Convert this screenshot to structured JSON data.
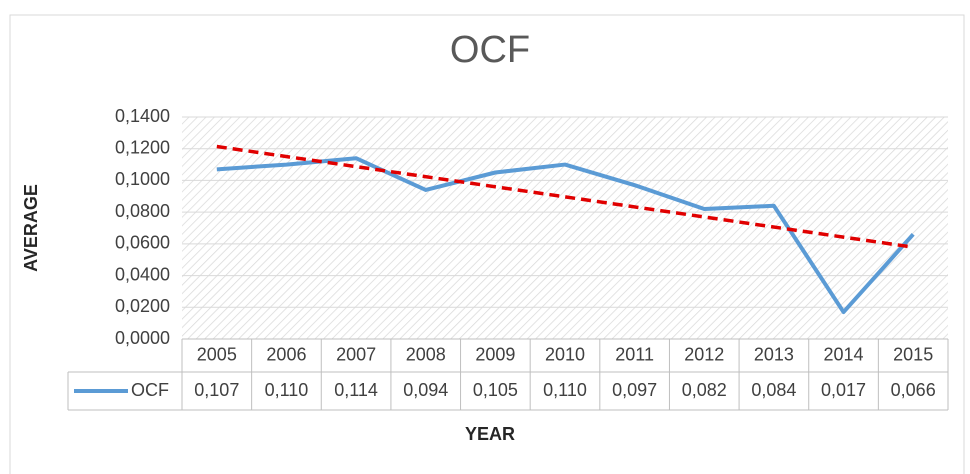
{
  "chart_data": {
    "type": "line",
    "title": "OCF",
    "x_label": "YEAR",
    "y_label": "AVERAGE",
    "categories": [
      "2005",
      "2006",
      "2007",
      "2008",
      "2009",
      "2010",
      "2011",
      "2012",
      "2013",
      "2014",
      "2015"
    ],
    "series": [
      {
        "name": "OCF",
        "color": "#5b9bd5",
        "values": [
          0.107,
          0.11,
          0.114,
          0.094,
          0.105,
          0.11,
          0.097,
          0.082,
          0.084,
          0.017,
          0.066
        ],
        "value_labels": [
          "0,107",
          "0,110",
          "0,114",
          "0,094",
          "0,105",
          "0,110",
          "0,097",
          "0,082",
          "0,084",
          "0,017",
          "0,066"
        ]
      }
    ],
    "trendline": {
      "color": "#e00000",
      "values": [
        0.1214,
        0.0579
      ]
    },
    "ylim": [
      0,
      0.14
    ],
    "yticks": [
      {
        "value": 0,
        "label": "0,0000"
      },
      {
        "value": 0.02,
        "label": "0,0200"
      },
      {
        "value": 0.04,
        "label": "0,0400"
      },
      {
        "value": 0.06,
        "label": "0,0600"
      },
      {
        "value": 0.08,
        "label": "0,0800"
      },
      {
        "value": 0.1,
        "label": "0,1000"
      },
      {
        "value": 0.12,
        "label": "0,1200"
      },
      {
        "value": 0.14,
        "label": "0,1400"
      }
    ],
    "grid": true,
    "legend": "table"
  }
}
